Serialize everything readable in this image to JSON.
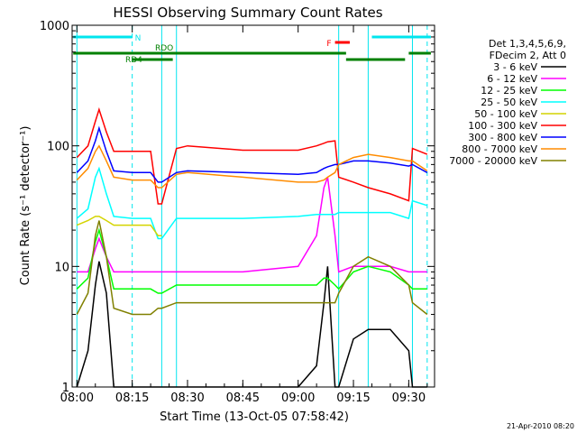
{
  "chart_data": {
    "type": "line",
    "title": "HESSI Observing Summary Count Rates",
    "xlabel": "Start Time (13-Oct-05 07:58:42)",
    "ylabel": "Count Rate (s⁻¹ detector⁻¹)",
    "y_scale": "log",
    "ylim": [
      1,
      1000
    ],
    "xlim": [
      "07:58:42",
      "09:37:00"
    ],
    "x_ticks": [
      "08:00",
      "08:15",
      "08:30",
      "08:45",
      "09:00",
      "09:15",
      "09:30"
    ],
    "y_ticks": [
      "1",
      "10",
      "100",
      "1000"
    ],
    "grid": false,
    "legend_position": "right",
    "legend_header": [
      "Det 1,3,4,5,6,9,",
      "FDecim 2, Att 0"
    ],
    "timestamp": "21-Apr-2010 08:20",
    "flags": [
      {
        "label": "N",
        "color": "#00e5ee",
        "segments": [
          [
            "07:59",
            "08:15"
          ],
          [
            "09:20",
            "09:36"
          ]
        ]
      },
      {
        "label": "F",
        "color": "#ff0000",
        "segments": [
          [
            "09:10",
            "09:14"
          ]
        ]
      },
      {
        "label": "RDO",
        "color": "#008000",
        "segments": [
          [
            "07:59",
            "09:13"
          ],
          [
            "09:30",
            "09:36"
          ]
        ]
      },
      {
        "label": "RD4",
        "color": "#008000",
        "segments": [
          [
            "08:15",
            "08:26"
          ],
          [
            "09:13",
            "09:29"
          ]
        ]
      }
    ],
    "vlines": [
      {
        "time": "08:00",
        "color": "#00e5ee",
        "style": "solid"
      },
      {
        "time": "08:15",
        "color": "#00e5ee",
        "style": "dashed"
      },
      {
        "time": "08:23",
        "color": "#00e5ee",
        "style": "solid"
      },
      {
        "time": "08:27",
        "color": "#00e5ee",
        "style": "solid"
      },
      {
        "time": "09:11",
        "color": "#00e5ee",
        "style": "solid"
      },
      {
        "time": "09:19",
        "color": "#00e5ee",
        "style": "solid"
      },
      {
        "time": "09:31",
        "color": "#00e5ee",
        "style": "solid"
      },
      {
        "time": "09:35",
        "color": "#00e5ee",
        "style": "dashed"
      }
    ],
    "x_times": [
      "08:00",
      "08:03",
      "08:05",
      "08:06",
      "08:08",
      "08:10",
      "08:15",
      "08:20",
      "08:22",
      "08:23",
      "08:27",
      "08:30",
      "08:45",
      "09:00",
      "09:05",
      "09:07",
      "09:08",
      "09:10",
      "09:11",
      "09:15",
      "09:19",
      "09:25",
      "09:30",
      "09:31",
      "09:35"
    ],
    "series": [
      {
        "name": "3 - 6 keV",
        "color": "#000000",
        "values": [
          1,
          2,
          7,
          11,
          6,
          1,
          1,
          1,
          1,
          1,
          1,
          1,
          1,
          1,
          1.5,
          5,
          10,
          1,
          1,
          2.5,
          3,
          3,
          2,
          1,
          1
        ]
      },
      {
        "name": "6 - 12 keV",
        "color": "#ff00ff",
        "values": [
          9,
          9,
          14,
          17,
          12,
          9,
          9,
          9,
          9,
          9,
          9,
          9,
          9,
          10,
          18,
          45,
          55,
          18,
          9,
          10,
          10,
          10,
          9,
          9,
          9
        ]
      },
      {
        "name": "12 - 25 keV",
        "color": "#00ff00",
        "values": [
          6.5,
          8,
          16,
          20,
          12,
          6.5,
          6.5,
          6.5,
          6,
          6,
          7,
          7,
          7,
          7,
          7,
          8,
          8,
          7,
          6.5,
          9,
          10,
          9,
          7,
          6.5,
          6.5
        ]
      },
      {
        "name": "25 - 50 keV",
        "color": "#00ffff",
        "values": [
          25,
          30,
          55,
          65,
          40,
          26,
          25,
          25,
          17,
          17,
          25,
          25,
          25,
          26,
          27,
          27,
          27,
          27,
          28,
          28,
          28,
          28,
          25,
          35,
          32
        ]
      },
      {
        "name": "50 - 100 keV",
        "color": "#d4d400",
        "values": [
          22,
          24,
          26,
          26,
          24,
          22,
          22,
          22,
          18,
          18,
          null,
          null,
          null,
          null,
          null,
          null,
          null,
          null,
          null,
          null,
          null,
          null,
          null,
          null,
          null
        ]
      },
      {
        "name": "100 - 300 keV",
        "color": "#ff0000",
        "values": [
          80,
          100,
          160,
          200,
          130,
          90,
          90,
          90,
          33,
          33,
          95,
          100,
          92,
          92,
          100,
          105,
          108,
          110,
          55,
          50,
          45,
          40,
          35,
          95,
          85
        ]
      },
      {
        "name": "300 - 800 keV",
        "color": "#0000ff",
        "values": [
          60,
          75,
          110,
          140,
          90,
          62,
          60,
          60,
          50,
          50,
          60,
          62,
          60,
          58,
          60,
          65,
          67,
          70,
          70,
          75,
          75,
          72,
          68,
          70,
          60
        ]
      },
      {
        "name": "800 - 7000 keV",
        "color": "#ff8c00",
        "values": [
          52,
          65,
          90,
          100,
          75,
          55,
          52,
          52,
          45,
          45,
          58,
          60,
          55,
          50,
          50,
          52,
          55,
          60,
          70,
          80,
          85,
          80,
          75,
          75,
          62
        ]
      },
      {
        "name": "7000 - 20000 keV",
        "color": "#808000",
        "values": [
          4,
          6,
          18,
          24,
          12,
          4.5,
          4,
          4,
          4.5,
          4.5,
          5,
          5,
          5,
          5,
          5,
          5,
          5,
          5,
          6,
          10,
          12,
          10,
          7,
          5,
          4
        ]
      }
    ]
  }
}
